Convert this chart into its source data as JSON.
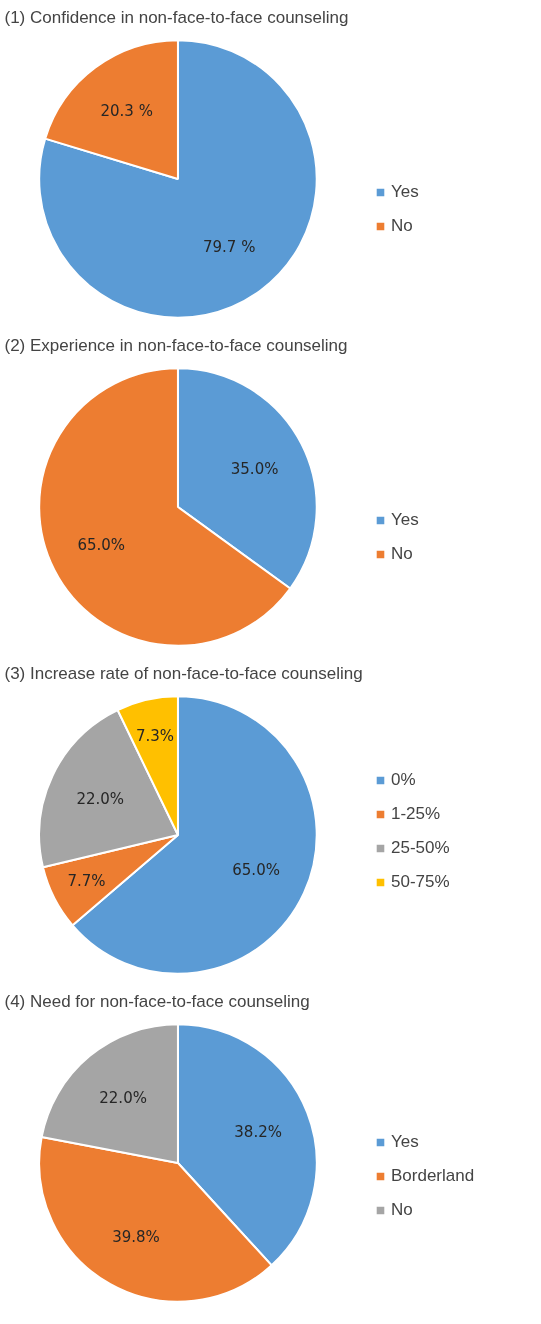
{
  "chart_data": [
    {
      "type": "pie",
      "title": "(1) Confidence in non-face-to-face counseling",
      "categories": [
        "Yes",
        "No"
      ],
      "values": [
        79.7,
        20.3
      ],
      "colors": [
        "#5b9bd5",
        "#ed7d31"
      ],
      "value_labels": [
        "79.7 %",
        "20.3 %"
      ],
      "legend": "right"
    },
    {
      "type": "pie",
      "title": "(2) Experience in non-face-to-face counseling",
      "categories": [
        "Yes",
        "No"
      ],
      "values": [
        35.0,
        65.0
      ],
      "colors": [
        "#5b9bd5",
        "#ed7d31"
      ],
      "value_labels": [
        "35.0%",
        "65.0%"
      ],
      "legend": "right"
    },
    {
      "type": "pie",
      "title": "(3) Increase rate of non-face-to-face counseling",
      "categories": [
        "0%",
        "1-25%",
        "25-50%",
        "50-75%"
      ],
      "values": [
        65.0,
        7.7,
        22.0,
        7.3
      ],
      "colors": [
        "#5b9bd5",
        "#ed7d31",
        "#a5a5a5",
        "#ffc000"
      ],
      "value_labels": [
        "65.0%",
        "7.7%",
        "22.0%",
        "7.3%"
      ],
      "legend": "right"
    },
    {
      "type": "pie",
      "title": "(4) Need for non-face-to-face counseling",
      "categories": [
        "Yes",
        "Borderland",
        "No"
      ],
      "values": [
        38.2,
        39.8,
        22.0
      ],
      "colors": [
        "#5b9bd5",
        "#ed7d31",
        "#a5a5a5"
      ],
      "value_labels": [
        "38.2%",
        "39.8%",
        "22.0%"
      ],
      "legend": "right"
    }
  ]
}
